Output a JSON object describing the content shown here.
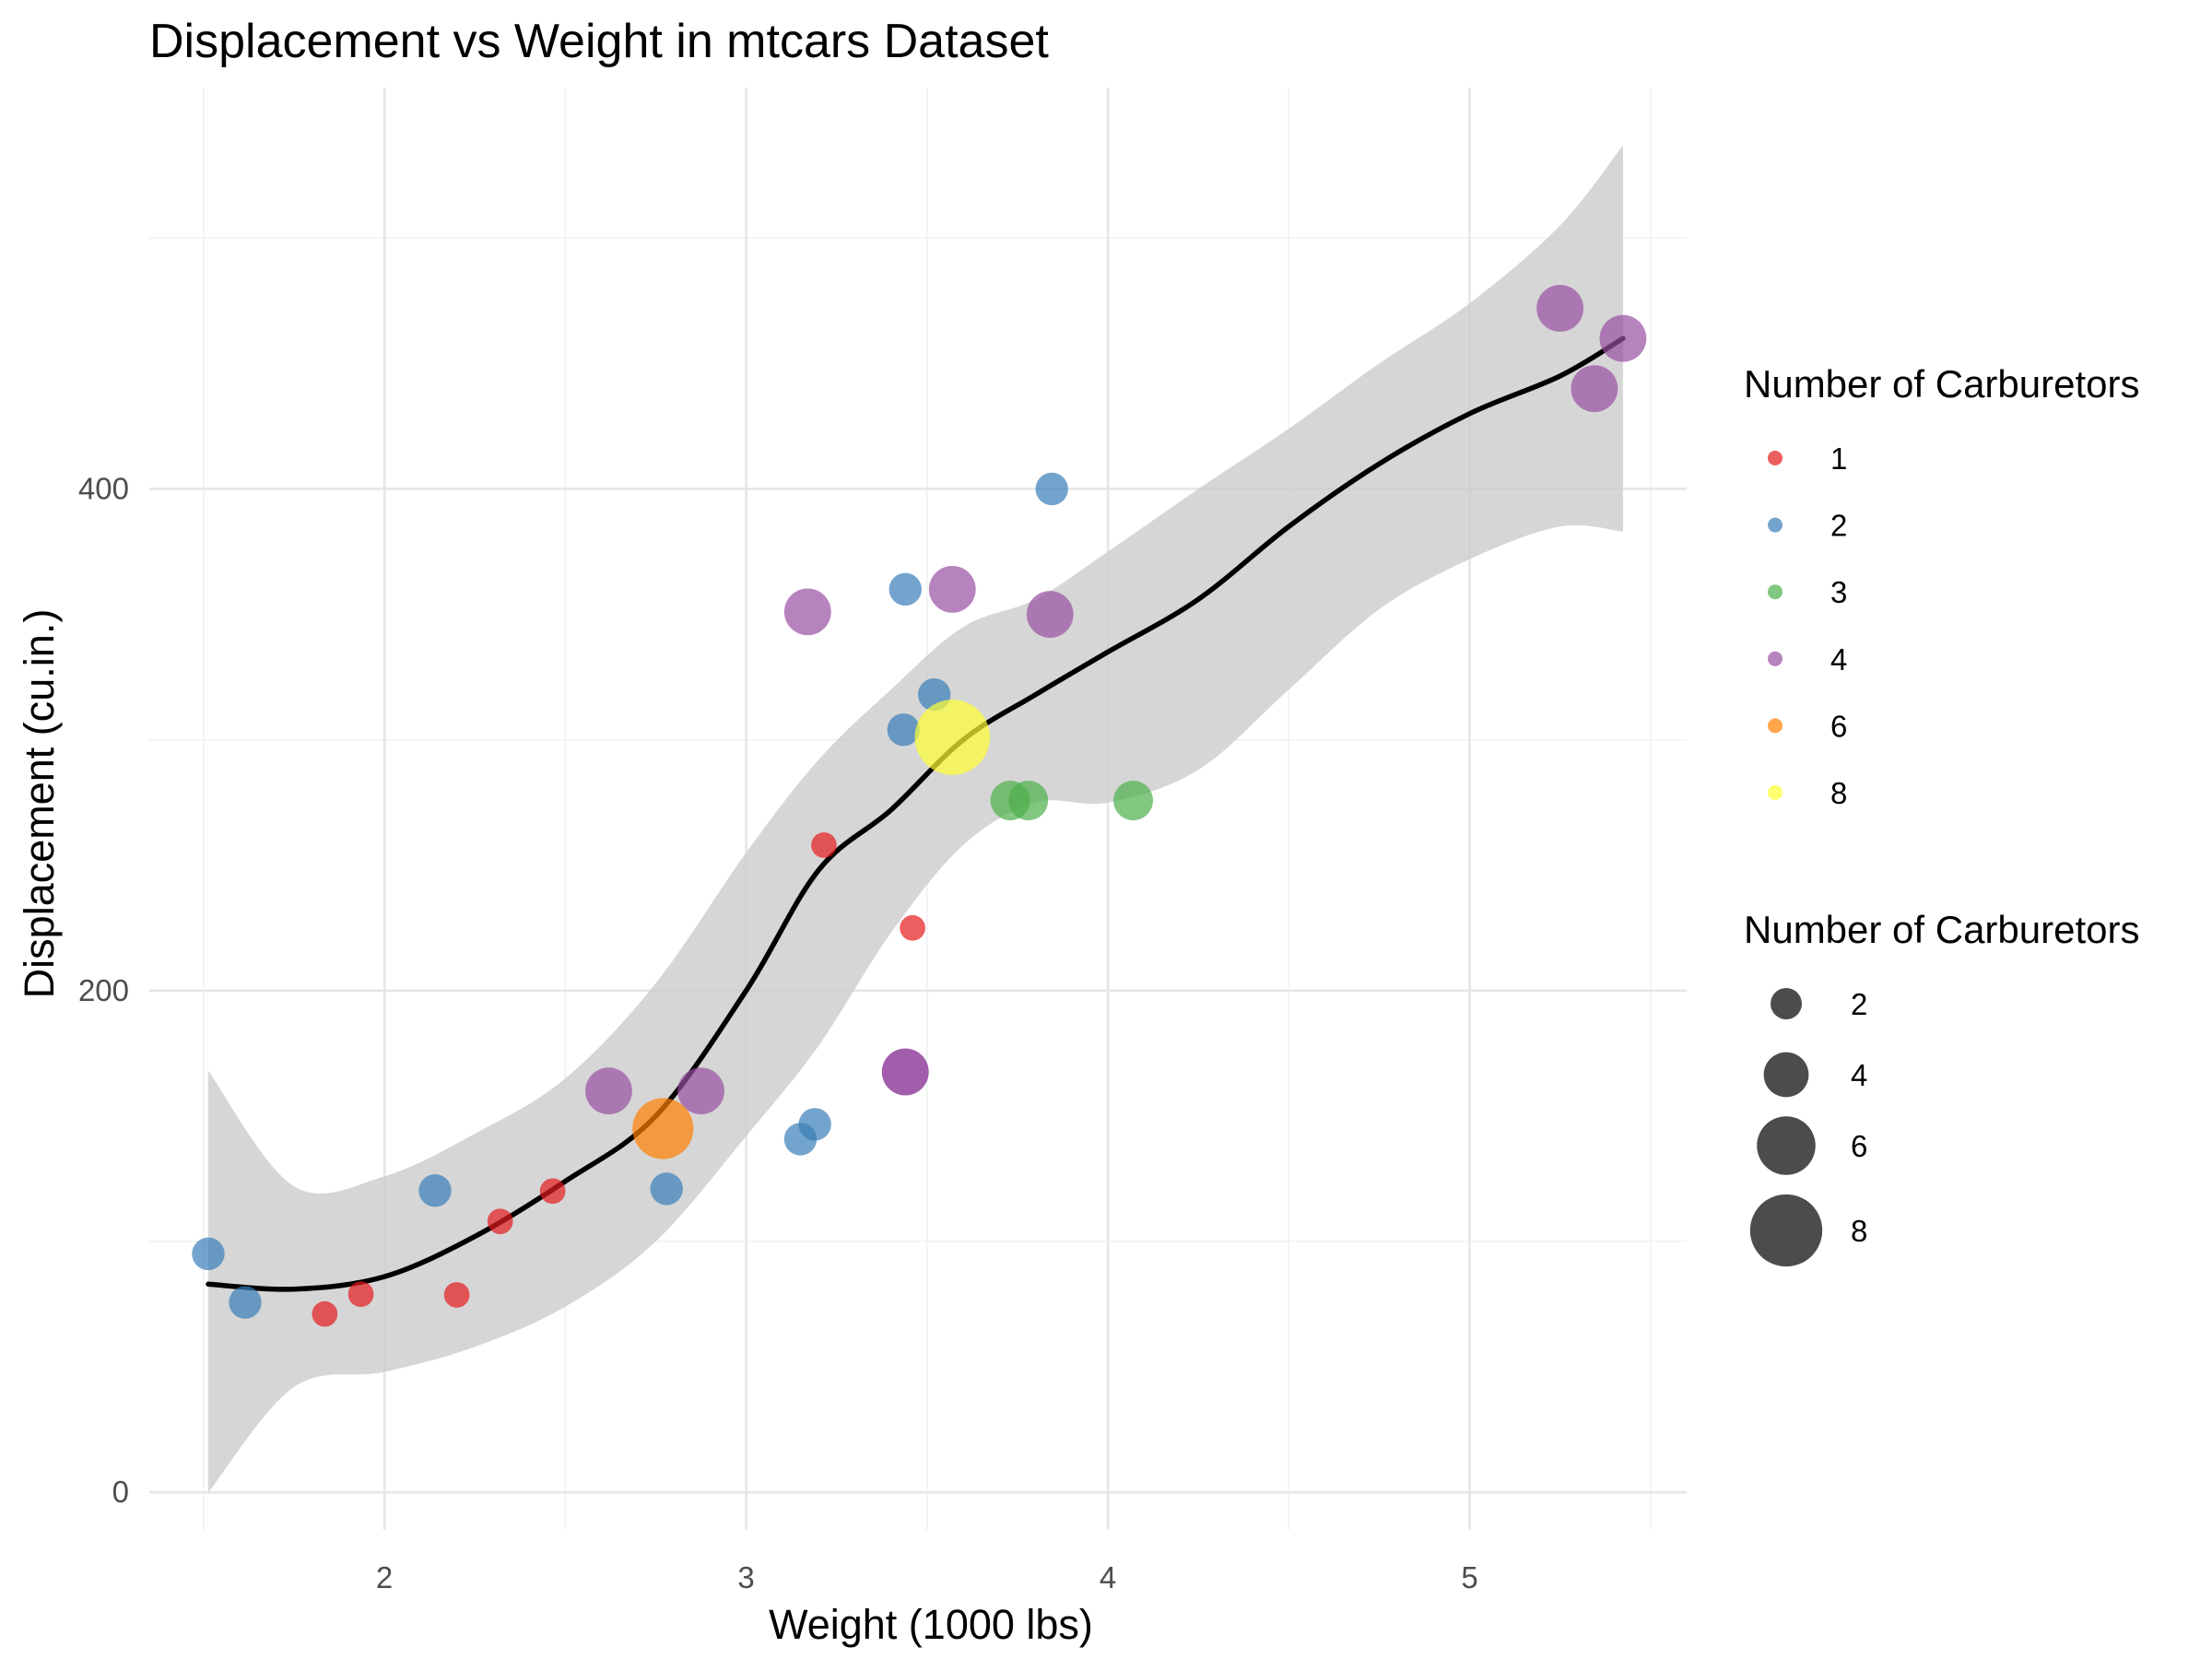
{
  "chart_data": {
    "type": "scatter",
    "title": "Displacement vs Weight in mtcars Dataset",
    "xlabel": "Weight (1000 lbs)",
    "ylabel": "Displacement (cu.in.)",
    "xlim": [
      1.35,
      5.6
    ],
    "ylim": [
      -15,
      560
    ],
    "xticks": [
      2,
      3,
      4,
      5
    ],
    "xtick_labels": [
      "2",
      "3",
      "4",
      "5"
    ],
    "yticks": [
      0,
      200,
      400
    ],
    "ytick_labels": [
      "0",
      "200",
      "400"
    ],
    "grid": true,
    "points": [
      {
        "wt": 2.62,
        "disp": 160,
        "carb": 4
      },
      {
        "wt": 2.875,
        "disp": 160,
        "carb": 4
      },
      {
        "wt": 2.32,
        "disp": 108,
        "carb": 1
      },
      {
        "wt": 3.215,
        "disp": 258,
        "carb": 1
      },
      {
        "wt": 3.44,
        "disp": 360,
        "carb": 2
      },
      {
        "wt": 3.46,
        "disp": 225,
        "carb": 1
      },
      {
        "wt": 3.57,
        "disp": 360,
        "carb": 4
      },
      {
        "wt": 3.19,
        "disp": 146.7,
        "carb": 2
      },
      {
        "wt": 3.15,
        "disp": 140.8,
        "carb": 2
      },
      {
        "wt": 3.44,
        "disp": 167.6,
        "carb": 4
      },
      {
        "wt": 3.44,
        "disp": 167.6,
        "carb": 4
      },
      {
        "wt": 4.07,
        "disp": 275.8,
        "carb": 3
      },
      {
        "wt": 3.73,
        "disp": 275.8,
        "carb": 3
      },
      {
        "wt": 3.78,
        "disp": 275.8,
        "carb": 3
      },
      {
        "wt": 5.25,
        "disp": 472,
        "carb": 4
      },
      {
        "wt": 5.424,
        "disp": 460,
        "carb": 4
      },
      {
        "wt": 5.345,
        "disp": 440,
        "carb": 4
      },
      {
        "wt": 2.2,
        "disp": 78.7,
        "carb": 1
      },
      {
        "wt": 1.615,
        "disp": 75.7,
        "carb": 2
      },
      {
        "wt": 1.835,
        "disp": 71.1,
        "carb": 1
      },
      {
        "wt": 2.465,
        "disp": 120.1,
        "carb": 1
      },
      {
        "wt": 3.52,
        "disp": 318,
        "carb": 2
      },
      {
        "wt": 3.435,
        "disp": 304,
        "carb": 2
      },
      {
        "wt": 3.84,
        "disp": 350,
        "carb": 4
      },
      {
        "wt": 3.845,
        "disp": 400,
        "carb": 2
      },
      {
        "wt": 1.935,
        "disp": 79,
        "carb": 1
      },
      {
        "wt": 2.14,
        "disp": 120.3,
        "carb": 2
      },
      {
        "wt": 1.513,
        "disp": 95.1,
        "carb": 2
      },
      {
        "wt": 3.17,
        "disp": 351,
        "carb": 4
      },
      {
        "wt": 2.77,
        "disp": 145,
        "carb": 6
      },
      {
        "wt": 3.57,
        "disp": 301,
        "carb": 8
      },
      {
        "wt": 2.78,
        "disp": 121,
        "carb": 2
      }
    ],
    "smooth": {
      "method": "loess",
      "line_color": "#000000",
      "band_color": "#cccccc",
      "x": [
        1.513,
        1.75,
        2.0,
        2.25,
        2.5,
        2.75,
        3.0,
        3.2,
        3.4,
        3.6,
        3.8,
        4.0,
        4.25,
        4.5,
        4.75,
        5.0,
        5.25,
        5.424
      ],
      "y": [
        83,
        81,
        86,
        102,
        124,
        150,
        200,
        248,
        272,
        300,
        318,
        335,
        356,
        385,
        410,
        430,
        445,
        460
      ],
      "lower": [
        0,
        42,
        48,
        58,
        74,
        100,
        142,
        178,
        223,
        258,
        275,
        275,
        288,
        320,
        352,
        372,
        385,
        383
      ],
      "upper": [
        168,
        122,
        126,
        143,
        165,
        203,
        255,
        292,
        320,
        345,
        356,
        375,
        400,
        424,
        450,
        474,
        505,
        537
      ]
    },
    "color_legend": {
      "title": "Number of Carburetors",
      "items": [
        {
          "label": "1",
          "value": 1,
          "color": "#e41a1c"
        },
        {
          "label": "2",
          "value": 2,
          "color": "#377eb8"
        },
        {
          "label": "3",
          "value": 3,
          "color": "#4daf4a"
        },
        {
          "label": "4",
          "value": 4,
          "color": "#984ea3"
        },
        {
          "label": "6",
          "value": 6,
          "color": "#ff7f00"
        },
        {
          "label": "8",
          "value": 8,
          "color": "#ffff33"
        }
      ]
    },
    "size_legend": {
      "title": "Number of Carburetors",
      "items": [
        {
          "label": "2",
          "value": 2
        },
        {
          "label": "4",
          "value": 4
        },
        {
          "label": "6",
          "value": 6
        },
        {
          "label": "8",
          "value": 8
        }
      ]
    },
    "point_alpha": 0.7,
    "legend_position": "right"
  }
}
